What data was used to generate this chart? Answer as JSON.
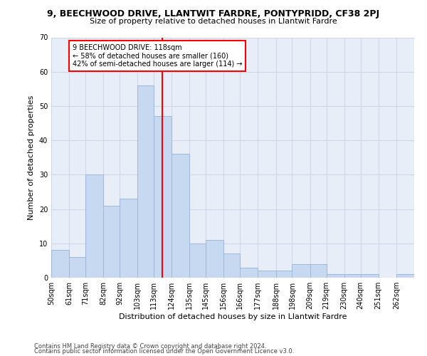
{
  "title": "9, BEECHWOOD DRIVE, LLANTWIT FARDRE, PONTYPRIDD, CF38 2PJ",
  "subtitle": "Size of property relative to detached houses in Llantwit Fardre",
  "xlabel": "Distribution of detached houses by size in Llantwit Fardre",
  "ylabel": "Number of detached properties",
  "categories": [
    "50sqm",
    "61sqm",
    "71sqm",
    "82sqm",
    "92sqm",
    "103sqm",
    "113sqm",
    "124sqm",
    "135sqm",
    "145sqm",
    "156sqm",
    "166sqm",
    "177sqm",
    "188sqm",
    "198sqm",
    "209sqm",
    "219sqm",
    "230sqm",
    "240sqm",
    "251sqm",
    "262sqm"
  ],
  "values": [
    8,
    6,
    30,
    21,
    23,
    56,
    47,
    36,
    10,
    11,
    7,
    3,
    2,
    2,
    4,
    4,
    1,
    1,
    1,
    0,
    1
  ],
  "bar_color": "#c6d9f0",
  "bar_edge_color": "#a0b8d8",
  "bin_edges": [
    50,
    61,
    71,
    82,
    92,
    103,
    113,
    124,
    135,
    145,
    156,
    166,
    177,
    188,
    198,
    209,
    219,
    230,
    240,
    251,
    262,
    273
  ],
  "annotation_text_line1": "9 BEECHWOOD DRIVE: 118sqm",
  "annotation_text_line2": "← 58% of detached houses are smaller (160)",
  "annotation_text_line3": "42% of semi-detached houses are larger (114) →",
  "annotation_box_color": "white",
  "annotation_box_edge": "red",
  "vline_x": 118,
  "vline_color": "red",
  "grid_color": "#d0d8e8",
  "bg_color": "#e8eef8",
  "ylim": [
    0,
    70
  ],
  "yticks": [
    0,
    10,
    20,
    30,
    40,
    50,
    60,
    70
  ],
  "title_fontsize": 9,
  "subtitle_fontsize": 8,
  "ylabel_fontsize": 8,
  "xlabel_fontsize": 8,
  "tick_fontsize": 7,
  "footer1": "Contains HM Land Registry data © Crown copyright and database right 2024.",
  "footer2": "Contains public sector information licensed under the Open Government Licence v3.0."
}
